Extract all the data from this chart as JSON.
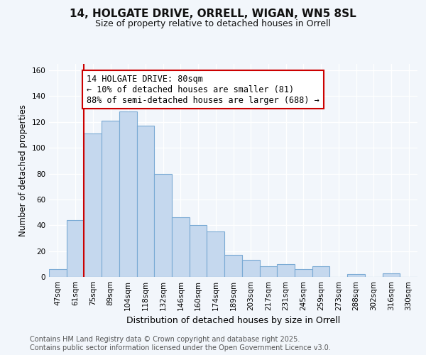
{
  "title_line1": "14, HOLGATE DRIVE, ORRELL, WIGAN, WN5 8SL",
  "title_line2": "Size of property relative to detached houses in Orrell",
  "xlabel": "Distribution of detached houses by size in Orrell",
  "ylabel": "Number of detached properties",
  "categories": [
    "47sqm",
    "61sqm",
    "75sqm",
    "89sqm",
    "104sqm",
    "118sqm",
    "132sqm",
    "146sqm",
    "160sqm",
    "174sqm",
    "189sqm",
    "203sqm",
    "217sqm",
    "231sqm",
    "245sqm",
    "259sqm",
    "273sqm",
    "288sqm",
    "302sqm",
    "316sqm",
    "330sqm"
  ],
  "values": [
    6,
    44,
    111,
    121,
    128,
    117,
    80,
    46,
    40,
    35,
    17,
    13,
    8,
    10,
    6,
    8,
    0,
    2,
    0,
    3,
    0
  ],
  "bar_color": "#c5d8ee",
  "bar_edge_color": "#7aaad4",
  "red_line_x": 2.0,
  "annotation_text_line1": "14 HOLGATE DRIVE: 80sqm",
  "annotation_text_line2": "← 10% of detached houses are smaller (81)",
  "annotation_text_line3": "88% of semi-detached houses are larger (688) →",
  "annotation_fontsize": 8.5,
  "annotation_box_color": "#ffffff",
  "annotation_border_color": "#cc0000",
  "red_line_color": "#cc0000",
  "ylim": [
    0,
    165
  ],
  "yticks": [
    0,
    20,
    40,
    60,
    80,
    100,
    120,
    140,
    160
  ],
  "bg_color": "#f2f6fb",
  "grid_color": "#ffffff",
  "footer_text": "Contains HM Land Registry data © Crown copyright and database right 2025.\nContains public sector information licensed under the Open Government Licence v3.0.",
  "title_fontsize": 11,
  "subtitle_fontsize": 9,
  "xlabel_fontsize": 9,
  "ylabel_fontsize": 8.5,
  "tick_fontsize": 7.5,
  "footer_fontsize": 7
}
